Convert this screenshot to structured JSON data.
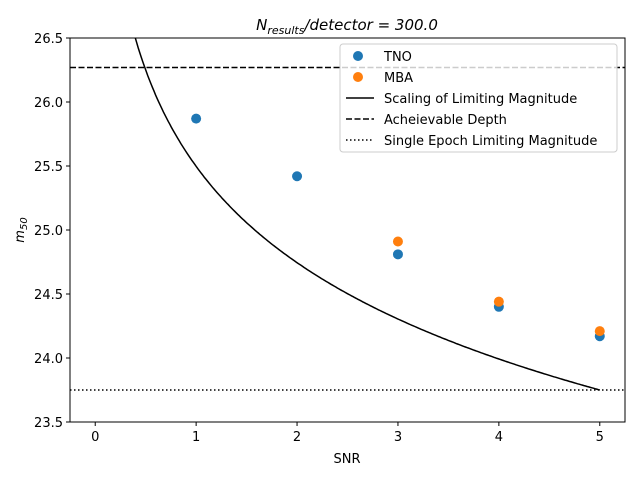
{
  "chart_data": {
    "type": "scatter",
    "title_main": "N",
    "title_sub": "results",
    "title_rest": "/detector = 300.0",
    "xlabel": "SNR",
    "ylabel_main": "m",
    "ylabel_sub": "50",
    "xlim": [
      -0.25,
      5.25
    ],
    "ylim": [
      23.5,
      26.5
    ],
    "xticks": [
      0,
      1,
      2,
      3,
      4,
      5
    ],
    "xtick_labels": [
      "0",
      "1",
      "2",
      "3",
      "4",
      "5"
    ],
    "yticks": [
      23.5,
      24.0,
      24.5,
      25.0,
      25.5,
      26.0,
      26.5
    ],
    "ytick_labels": [
      "23.5",
      "24.0",
      "24.5",
      "25.0",
      "25.5",
      "26.0",
      "26.5"
    ],
    "grid": false,
    "legend_placement": "top-right",
    "series": [
      {
        "name": "TNO",
        "color": "#1f77b4",
        "x": [
          1,
          2,
          3,
          4,
          5
        ],
        "y": [
          25.87,
          25.42,
          24.81,
          24.4,
          24.17
        ]
      },
      {
        "name": "MBA",
        "color": "#ff7f0e",
        "x": [
          3,
          4,
          5
        ],
        "y": [
          24.91,
          24.44,
          24.21
        ]
      }
    ],
    "lines": [
      {
        "name": "Scaling of Limiting Magnitude",
        "style": "solid",
        "formula": "m = limit + 2.5*log10(ref_snr/SNR)",
        "limit": 23.75,
        "ref_snr": 5,
        "x_range": [
          0.3,
          5
        ]
      },
      {
        "name": "Acheievable Depth",
        "style": "dashed",
        "y": 26.27
      },
      {
        "name": "Single Epoch Limiting Magnitude",
        "style": "dotted",
        "y": 23.75
      }
    ]
  }
}
